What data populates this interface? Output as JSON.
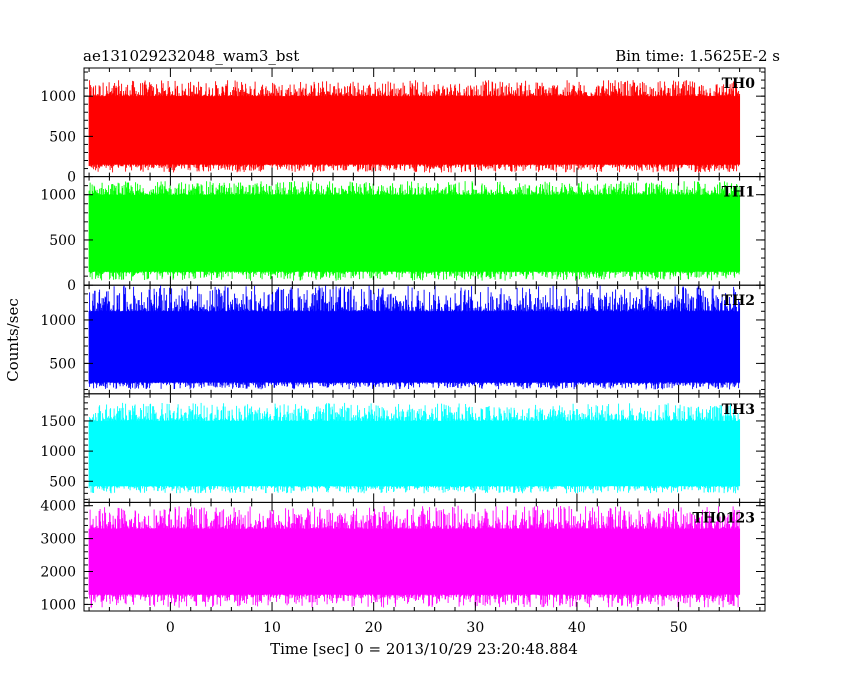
{
  "chart_data": {
    "type": "line",
    "title": "ae131029232048_wam3_bst",
    "subtitle": "Bin time: 1.5625E-2 s",
    "xlabel": "Time [sec] 0 = 2013/10/29 23:20:48.884",
    "ylabel": "Counts/sec",
    "xlim": [
      -8.5,
      58.5
    ],
    "x_data_range": [
      -8,
      56
    ],
    "xticks": [
      0,
      10,
      20,
      30,
      40,
      50
    ],
    "xtick_labels": [
      "0",
      "10",
      "20",
      "30",
      "40",
      "50"
    ],
    "panels": [
      {
        "label": "TH0",
        "color": "#ff0000",
        "ylim": [
          0,
          1350
        ],
        "yticks": [
          0,
          500,
          1000
        ],
        "ytick_labels": [
          "0",
          "500",
          "1000"
        ],
        "minor_step": 100,
        "band": [
          50,
          1200
        ],
        "core": [
          150,
          1000
        ],
        "mean": 560
      },
      {
        "label": "TH1",
        "color": "#00ff00",
        "ylim": [
          0,
          1200
        ],
        "yticks": [
          0,
          500,
          1000
        ],
        "ytick_labels": [
          "0",
          "500",
          "1000"
        ],
        "minor_step": 100,
        "band": [
          50,
          1150
        ],
        "core": [
          150,
          1000
        ],
        "mean": 560
      },
      {
        "label": "TH2",
        "color": "#0000ff",
        "ylim": [
          150,
          1400
        ],
        "yticks": [
          500,
          1000
        ],
        "ytick_labels": [
          "500",
          "1000"
        ],
        "minor_step": 100,
        "band": [
          200,
          1400
        ],
        "core": [
          280,
          1100
        ],
        "mean": 700
      },
      {
        "label": "TH3",
        "color": "#00ffff",
        "ylim": [
          150,
          1950
        ],
        "yticks": [
          500,
          1000,
          1500
        ],
        "ytick_labels": [
          "500",
          "1000",
          "1500"
        ],
        "minor_step": 100,
        "band": [
          300,
          1800
        ],
        "core": [
          420,
          1500
        ],
        "mean": 1020
      },
      {
        "label": "TH0123",
        "color": "#ff00ff",
        "ylim": [
          800,
          4100
        ],
        "yticks": [
          1000,
          2000,
          3000,
          4000
        ],
        "ytick_labels": [
          "1000",
          "2000",
          "3000",
          "4000"
        ],
        "minor_step": 200,
        "band": [
          900,
          4000
        ],
        "core": [
          1300,
          3300
        ],
        "mean": 2500
      }
    ],
    "grid": false,
    "legend": "none"
  }
}
